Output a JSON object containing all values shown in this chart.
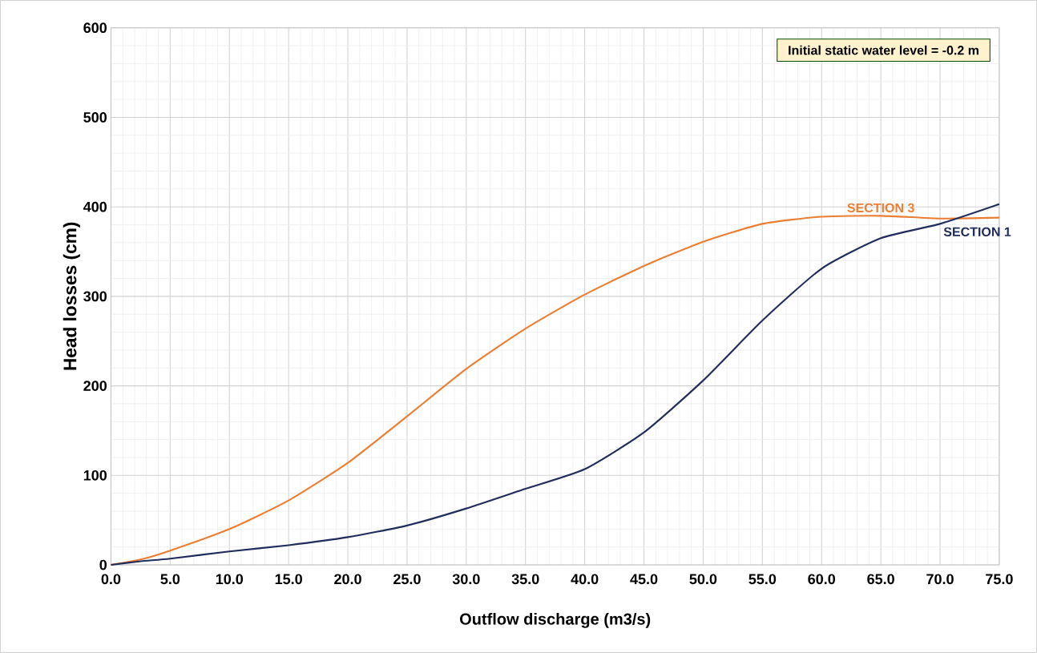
{
  "chart_data": {
    "type": "line",
    "xlabel": "Outflow discharge (m3/s)",
    "ylabel": "Head losses (cm)",
    "annotations": [
      "Initial static water level = -0.2 m"
    ],
    "x": [
      0,
      2.5,
      5,
      10,
      15,
      20,
      25,
      30,
      35,
      40,
      45,
      50,
      55,
      60,
      65,
      70,
      75
    ],
    "series": [
      {
        "name": "SECTION 3",
        "color": "#ed7d31",
        "values": [
          0,
          6,
          16,
          40,
          72,
          114,
          166,
          219,
          264,
          302,
          334,
          361,
          381,
          389,
          390,
          387,
          388
        ]
      },
      {
        "name": "SECTION 1",
        "color": "#1f2d5c",
        "values": [
          0,
          4,
          7,
          15,
          22,
          31,
          44,
          63,
          85,
          107,
          148,
          206,
          273,
          331,
          365,
          381,
          403
        ]
      }
    ],
    "xlim": [
      0,
      75
    ],
    "ylim": [
      0,
      600
    ],
    "xticks": [
      {
        "value": 0,
        "label": "0.0"
      },
      {
        "value": 5,
        "label": "5.0"
      },
      {
        "value": 10,
        "label": "10.0"
      },
      {
        "value": 15,
        "label": "15.0"
      },
      {
        "value": 20,
        "label": "20.0"
      },
      {
        "value": 25,
        "label": "25.0"
      },
      {
        "value": 30,
        "label": "30.0"
      },
      {
        "value": 35,
        "label": "35.0"
      },
      {
        "value": 40,
        "label": "40.0"
      },
      {
        "value": 45,
        "label": "45.0"
      },
      {
        "value": 50,
        "label": "50.0"
      },
      {
        "value": 55,
        "label": "55.0"
      },
      {
        "value": 60,
        "label": "60.0"
      },
      {
        "value": 65,
        "label": "65.0"
      },
      {
        "value": 70,
        "label": "70.0"
      },
      {
        "value": 75,
        "label": "75.0"
      }
    ],
    "yticks": [
      0,
      100,
      200,
      300,
      400,
      500,
      600
    ],
    "grid": true,
    "marker": "none",
    "line_style": "solid"
  }
}
